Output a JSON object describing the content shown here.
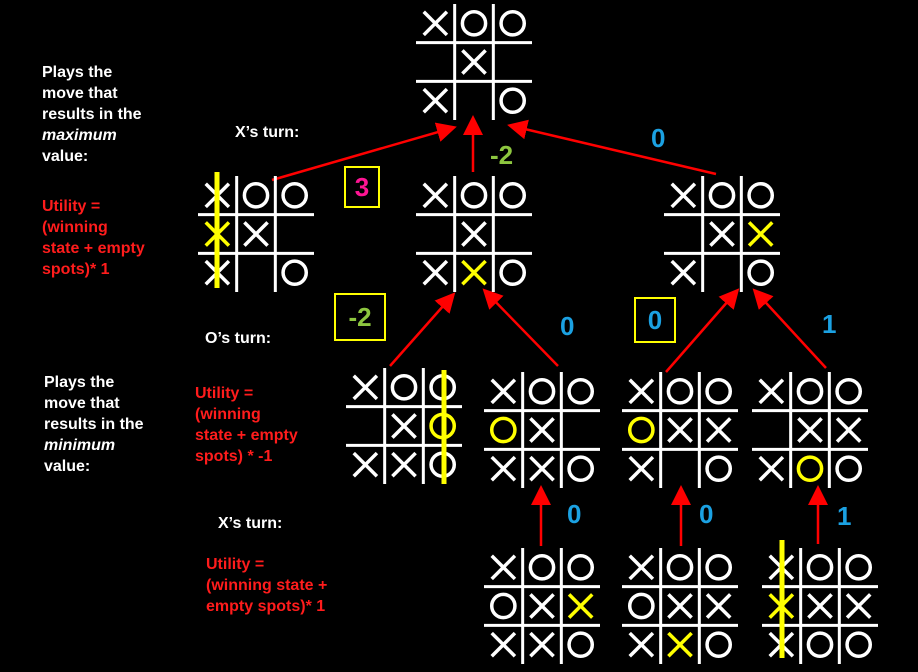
{
  "notes": {
    "max_desc": "Plays the\nmove that\nresults in the\nmaximum\nvalue:",
    "max_desc_parts": [
      "Plays the\nmove that\nresults in the\n",
      "maximum",
      "\nvalue:"
    ],
    "min_desc_parts": [
      "Plays the\nmove that\nresults in the\n",
      "minimum",
      "\nvalue:"
    ],
    "utility_max_top": "Utility =\n(winning\nstate + empty\nspots)* 1",
    "utility_min": "Utility =\n(winning\nstate + empty\nspots) * -1",
    "utility_max_bottom": "Utility =\n(winning state +\nempty spots)* 1"
  },
  "turns": {
    "x_top": "X’s turn:",
    "o_mid": "O’s turn:",
    "x_bottom": "X’s turn:"
  },
  "values": {
    "v_top_left": "3",
    "v_top_mid": "-2",
    "v_top_right": "0",
    "v_mid_a": "-2",
    "v_mid_b": "0",
    "v_mid_c": "0",
    "v_mid_d": "1",
    "v_bot_a": "0",
    "v_bot_b": "0",
    "v_bot_c": "1"
  },
  "colors": {
    "background": "#000000",
    "grid": "#ffffff",
    "arrow": "#ff0000",
    "highlight": "#ffff00",
    "utility_text": "#ff1c1c",
    "value_blue": "#1ba1e2",
    "value_green": "#8dc63f",
    "value_pink": "#ff1493"
  },
  "boards": {
    "root": {
      "cells": [
        "X",
        "O",
        "O",
        "",
        "X",
        "",
        "X",
        "",
        "O"
      ],
      "highlight": []
    },
    "max_a": {
      "cells": [
        "X",
        "O",
        "O",
        "X",
        "X",
        "",
        "X",
        "",
        "O"
      ],
      "highlight": [
        3
      ]
    },
    "max_b": {
      "cells": [
        "X",
        "O",
        "O",
        "",
        "X",
        "",
        "X",
        "X",
        "O"
      ],
      "highlight": [
        7
      ]
    },
    "max_c": {
      "cells": [
        "X",
        "O",
        "O",
        "",
        "X",
        "X",
        "X",
        "",
        "O"
      ],
      "highlight": [
        5
      ]
    },
    "min_a": {
      "cells": [
        "X",
        "O",
        "O",
        "",
        "X",
        "O",
        "X",
        "X",
        "O"
      ],
      "highlight": [
        5
      ]
    },
    "min_b": {
      "cells": [
        "X",
        "O",
        "O",
        "O",
        "X",
        "",
        "X",
        "X",
        "O"
      ],
      "highlight": [
        3
      ]
    },
    "min_c": {
      "cells": [
        "X",
        "O",
        "O",
        "O",
        "X",
        "X",
        "X",
        "",
        "O"
      ],
      "highlight": [
        3
      ]
    },
    "min_d": {
      "cells": [
        "X",
        "O",
        "O",
        "",
        "X",
        "X",
        "X",
        "O",
        "O"
      ],
      "highlight": [
        7
      ]
    },
    "leaf_a": {
      "cells": [
        "X",
        "O",
        "O",
        "O",
        "X",
        "X",
        "X",
        "X",
        "O"
      ],
      "highlight": [
        5
      ]
    },
    "leaf_b": {
      "cells": [
        "X",
        "O",
        "O",
        "O",
        "X",
        "X",
        "X",
        "X",
        "O"
      ],
      "highlight": [
        7
      ]
    },
    "leaf_c": {
      "cells": [
        "X",
        "O",
        "O",
        "X",
        "X",
        "X",
        "X",
        "O",
        "O"
      ],
      "highlight": [
        3
      ]
    }
  }
}
